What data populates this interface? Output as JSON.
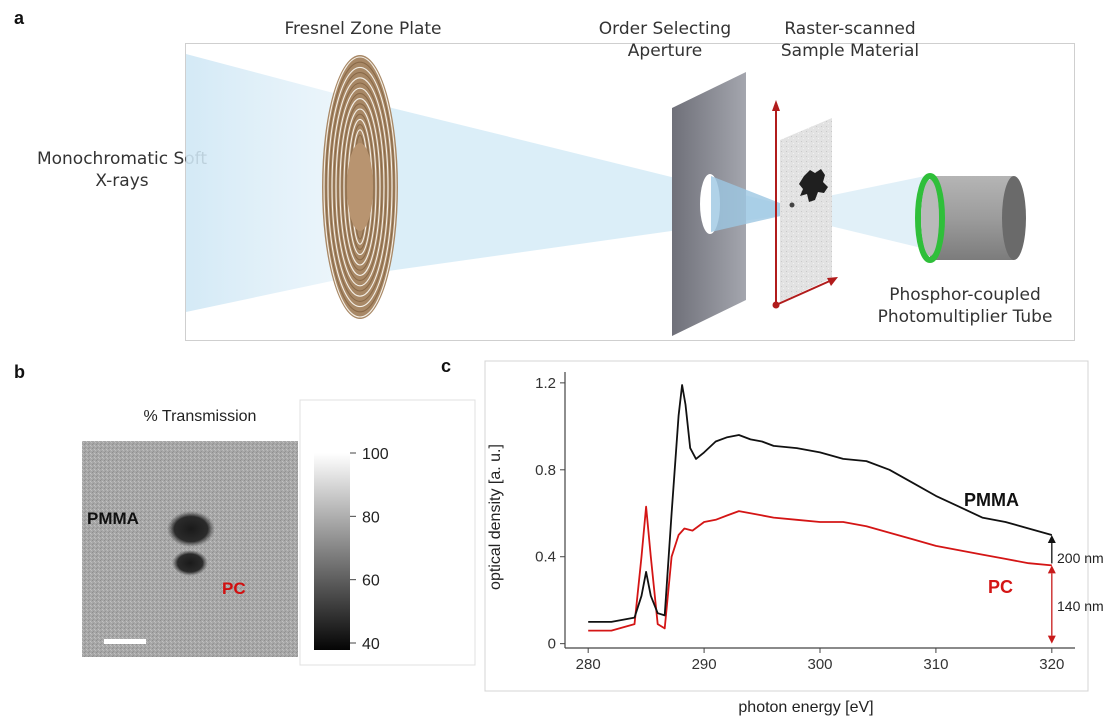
{
  "panel_a": {
    "letter": "a",
    "labels": {
      "source": [
        "Monochromatic Soft",
        "X-rays"
      ],
      "zone_plate": "Fresnel Zone Plate",
      "aperture": [
        "Order Selecting",
        "Aperture"
      ],
      "sample": [
        "Raster-scanned",
        "Sample Material"
      ],
      "detector": [
        "Phosphor-coupled",
        "Photomultiplier Tube"
      ]
    },
    "colors": {
      "beam": "#cfe9f7",
      "zone_plate": "#b58f67",
      "aperture": "#8d8f99",
      "scan_axes": "#b11c1c",
      "detector_ring": "#2fbf3a",
      "detector_body": "#9a9a9a"
    }
  },
  "panel_b": {
    "letter": "b",
    "title": "% Transmission",
    "label_pmma": "PMMA",
    "label_pc": "PC",
    "colorbar_ticks": [
      "100",
      "80",
      "60",
      "40"
    ],
    "colors": {
      "pc_label": "#d10f0f",
      "pmma_label": "#111111"
    }
  },
  "panel_c": {
    "letter": "c",
    "label_pmma": "PMMA",
    "label_pc": "PC",
    "ann_200": "200 nm",
    "ann_140": "140 nm",
    "colors": {
      "pmma": "#111111",
      "pc": "#d41515",
      "arrow_140": "#c81b1b"
    }
  },
  "chart_data": {
    "type": "line",
    "xlabel": "photon energy [eV]",
    "ylabel": "optical density [a. u.]",
    "xlim": [
      278,
      322
    ],
    "ylim": [
      -0.02,
      1.25
    ],
    "xticks": [
      280,
      290,
      300,
      310,
      320
    ],
    "yticks": [
      0,
      0.4,
      0.8,
      1.2
    ],
    "series": [
      {
        "name": "PMMA",
        "x": [
          280,
          282,
          284,
          284.6,
          285,
          285.4,
          286,
          286.6,
          287.2,
          287.8,
          288.1,
          288.4,
          288.8,
          289.3,
          290,
          291,
          292,
          293,
          294,
          295,
          296,
          298,
          300,
          302,
          304,
          306,
          308,
          310,
          312,
          314,
          316,
          318,
          320
        ],
        "y": [
          0.1,
          0.1,
          0.12,
          0.22,
          0.33,
          0.22,
          0.14,
          0.13,
          0.6,
          1.05,
          1.19,
          1.1,
          0.9,
          0.85,
          0.88,
          0.93,
          0.95,
          0.96,
          0.94,
          0.93,
          0.91,
          0.9,
          0.88,
          0.85,
          0.84,
          0.8,
          0.74,
          0.68,
          0.63,
          0.58,
          0.56,
          0.53,
          0.5
        ]
      },
      {
        "name": "PC",
        "x": [
          280,
          282,
          284,
          284.6,
          285,
          285.4,
          286,
          286.6,
          287.2,
          287.8,
          288.3,
          289,
          290,
          291,
          292,
          293,
          294,
          295,
          296,
          298,
          300,
          302,
          304,
          306,
          308,
          310,
          312,
          314,
          316,
          318,
          320
        ],
        "y": [
          0.06,
          0.06,
          0.09,
          0.4,
          0.63,
          0.4,
          0.09,
          0.07,
          0.4,
          0.5,
          0.53,
          0.52,
          0.56,
          0.57,
          0.59,
          0.61,
          0.6,
          0.59,
          0.58,
          0.57,
          0.56,
          0.56,
          0.54,
          0.51,
          0.48,
          0.45,
          0.43,
          0.41,
          0.39,
          0.37,
          0.36
        ]
      }
    ],
    "grid": false,
    "legend": "none"
  }
}
